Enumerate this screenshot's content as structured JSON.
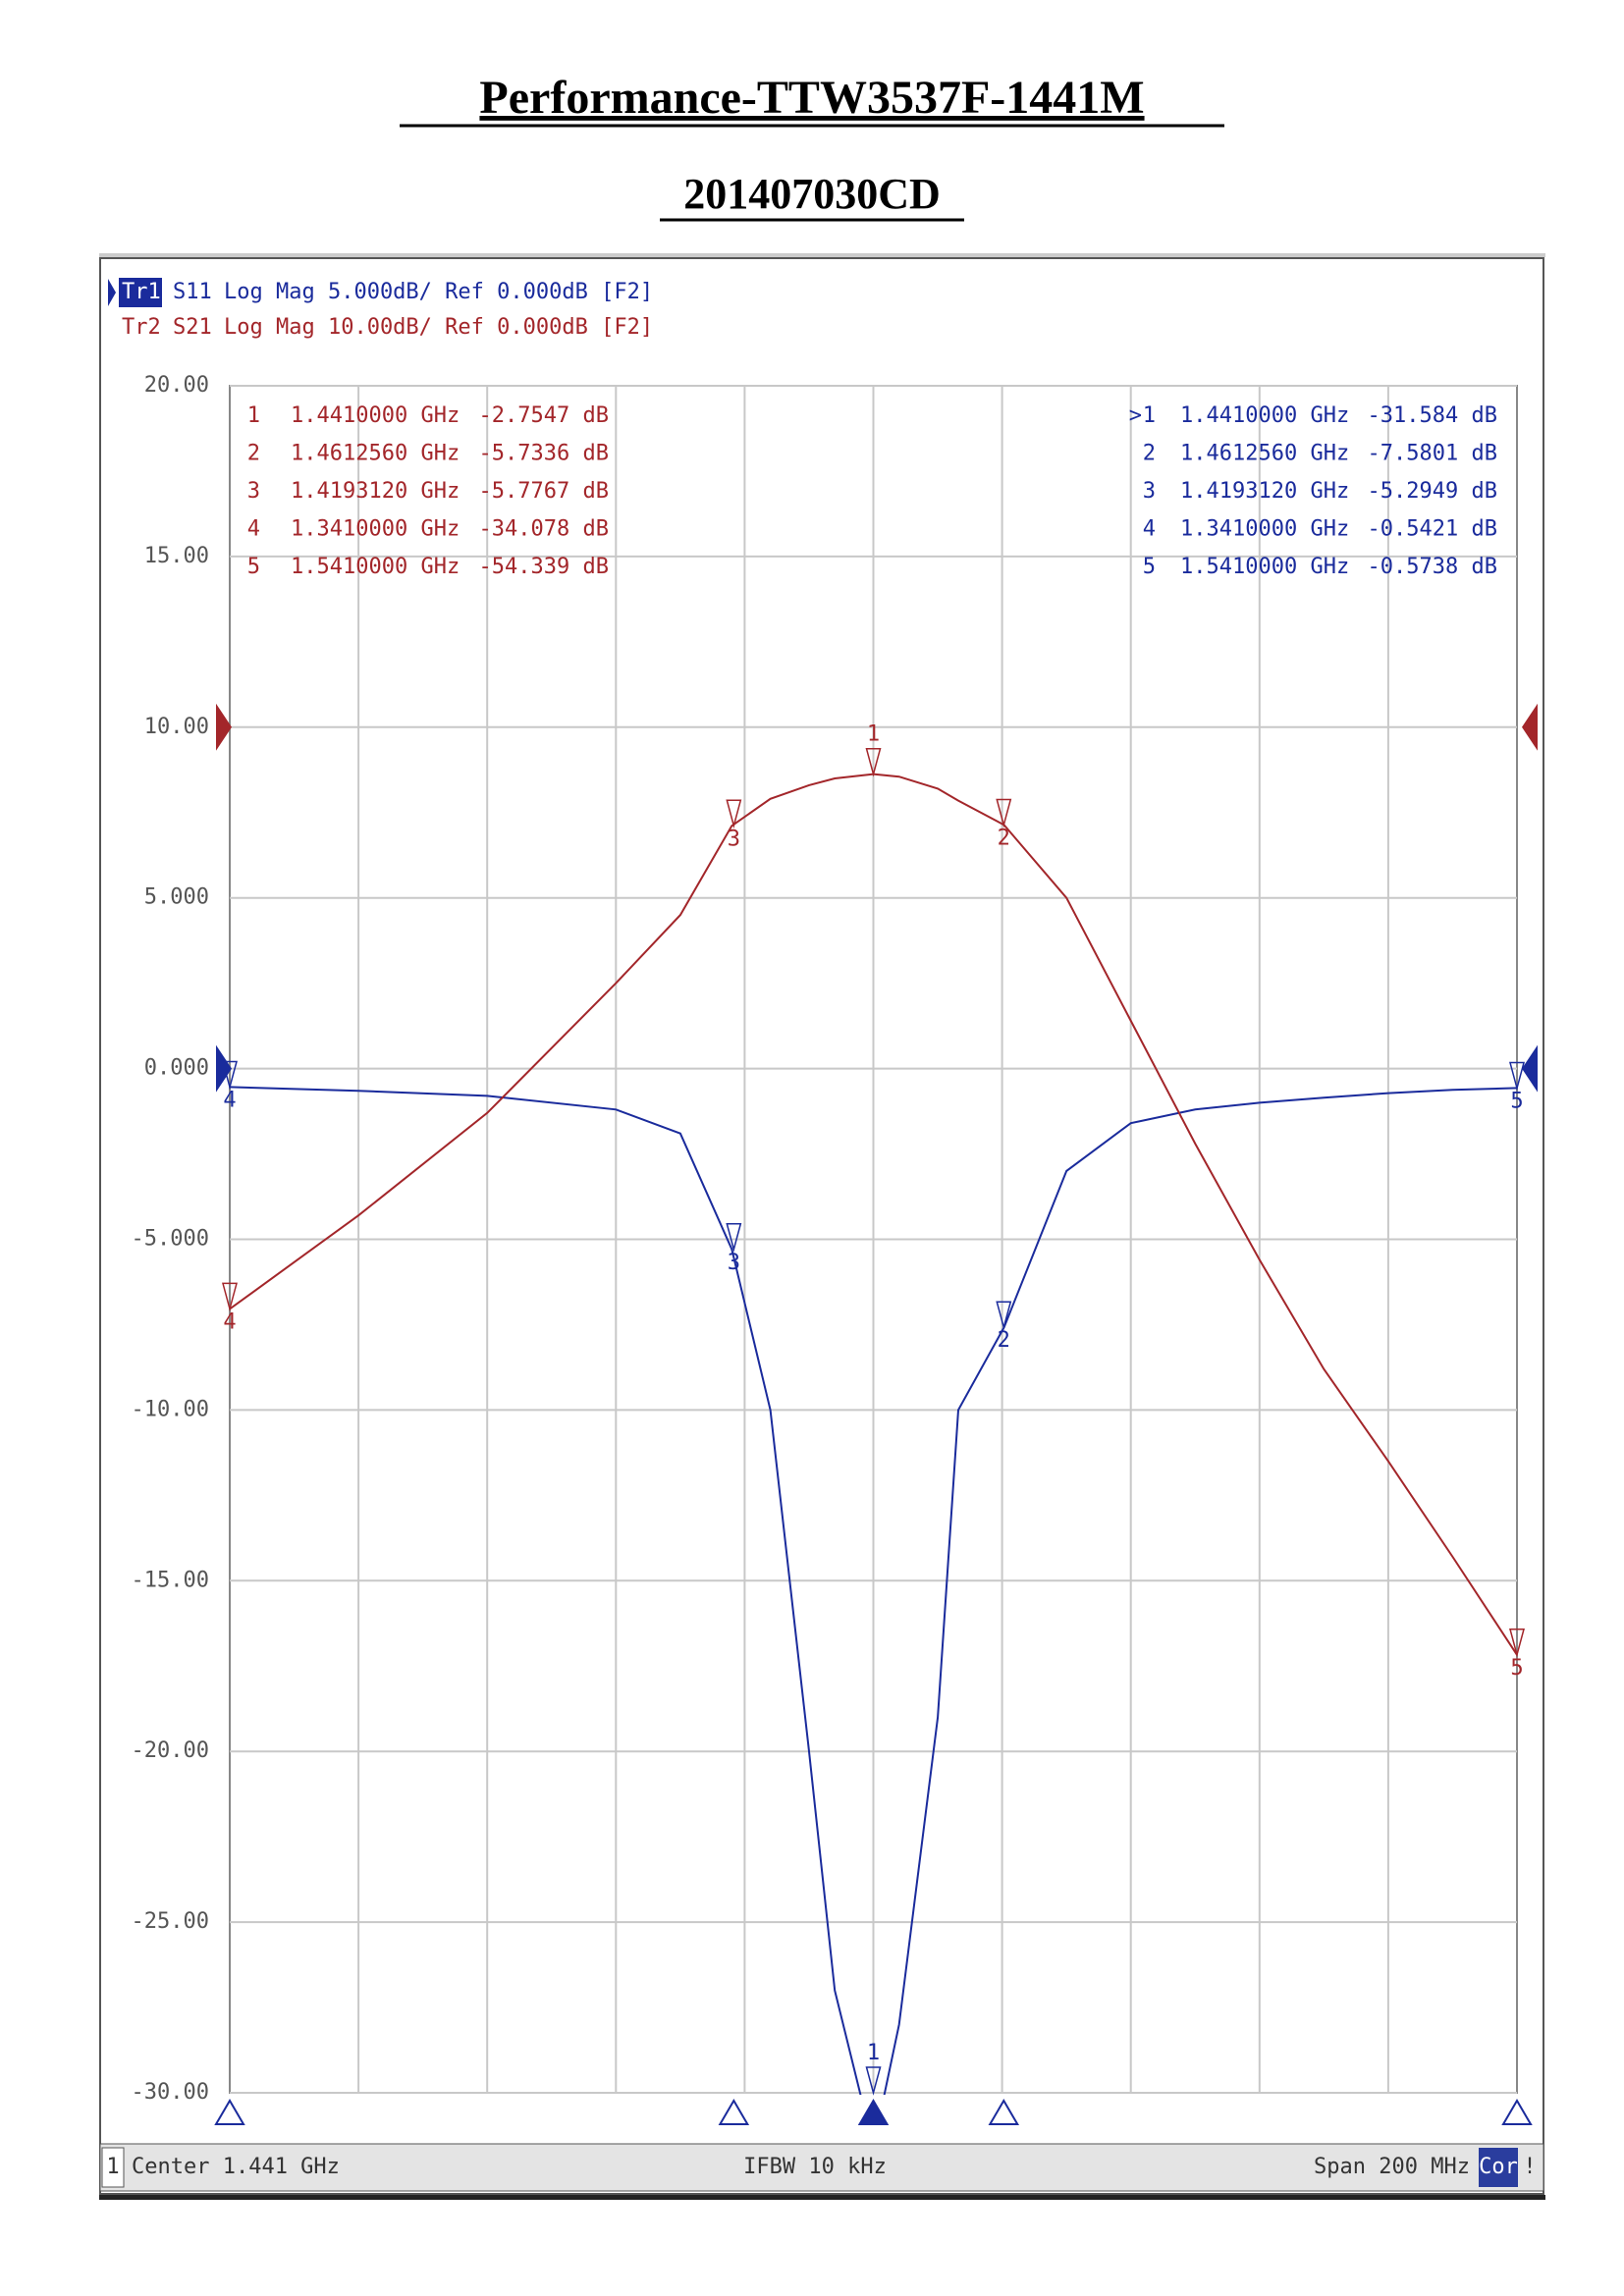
{
  "chart_data": {
    "type": "line",
    "title": "Performance-TTW3537F-1441M",
    "subtitle": "201407030CD",
    "x": [
      1.341,
      1.361,
      1.381,
      1.401,
      1.411,
      1.419,
      1.425,
      1.431,
      1.435,
      1.441,
      1.445,
      1.451,
      1.4542,
      1.4613,
      1.471,
      1.481,
      1.491,
      1.501,
      1.511,
      1.521,
      1.531,
      1.541
    ],
    "xlim": [
      1.341,
      1.541
    ],
    "x_divisions": 10,
    "ylim": [
      -30,
      20
    ],
    "yticks": [
      {
        "value": 20,
        "label": "20.00"
      },
      {
        "value": 15,
        "label": "15.00"
      },
      {
        "value": 10,
        "label": "10.00"
      },
      {
        "value": 5,
        "label": "5.000"
      },
      {
        "value": 0,
        "label": "0.000"
      },
      {
        "value": -5,
        "label": "-5.000"
      },
      {
        "value": -10,
        "label": "-10.00"
      },
      {
        "value": -15,
        "label": "-15.00"
      },
      {
        "value": -20,
        "label": "-20.00"
      },
      {
        "value": -25,
        "label": "-25.00"
      },
      {
        "value": -30,
        "label": "-30.00"
      }
    ],
    "y2lim": [
      -80,
      20
    ],
    "grid": true,
    "series": [
      {
        "trace": "Tr1",
        "name": "S11",
        "header": "Log Mag 5.000dB/ Ref 0.000dB [F2]",
        "color": "#1a2b9c",
        "ref": 0,
        "active_symbol": ">",
        "values": [
          -0.54,
          -0.65,
          -0.8,
          -1.2,
          -1.9,
          -5.29,
          -10,
          -20,
          -27,
          -31.58,
          -28,
          -19,
          -10,
          -7.58,
          -3,
          -1.6,
          -1.2,
          -1.0,
          -0.85,
          -0.72,
          -0.62,
          -0.57
        ],
        "markers": [
          {
            "id": "1",
            "x": 1.441,
            "value": -31.584,
            "x_label": "1.4410000 GHz",
            "value_label": "-31.584 dB"
          },
          {
            "id": "2",
            "x": 1.461256,
            "value": -7.5801,
            "x_label": "1.4612560 GHz",
            "value_label": "-7.5801 dB"
          },
          {
            "id": "3",
            "x": 1.419312,
            "value": -5.2949,
            "x_label": "1.4193120 GHz",
            "value_label": "-5.2949 dB"
          },
          {
            "id": "4",
            "x": 1.341,
            "value": -0.5421,
            "x_label": "1.3410000 GHz",
            "value_label": "-0.5421 dB"
          },
          {
            "id": "5",
            "x": 1.541,
            "value": -0.5738,
            "x_label": "1.5410000 GHz",
            "value_label": "-0.5738 dB"
          }
        ]
      },
      {
        "trace": "Tr2",
        "name": "S21",
        "header": "Log Mag 10.00dB/ Ref 0.000dB [F2]",
        "color": "#a3262a",
        "axis": "y2",
        "ref": 0,
        "values": [
          -34.08,
          -28.6,
          -22.6,
          -15,
          -11,
          -5.78,
          -4.2,
          -3.4,
          -3,
          -2.75,
          -2.9,
          -3.6,
          -4.3,
          -5.73,
          -10,
          -17.2,
          -24.4,
          -31.2,
          -37.6,
          -43,
          -48.6,
          -54.34
        ],
        "markers": [
          {
            "id": "1",
            "x": 1.441,
            "value": -2.7547,
            "x_label": "1.4410000 GHz",
            "value_label": "-2.7547 dB"
          },
          {
            "id": "2",
            "x": 1.461256,
            "value": -5.7336,
            "x_label": "1.4612560 GHz",
            "value_label": "-5.7336 dB"
          },
          {
            "id": "3",
            "x": 1.419312,
            "value": -5.7767,
            "x_label": "1.4193120 GHz",
            "value_label": "-5.7767 dB"
          },
          {
            "id": "4",
            "x": 1.341,
            "value": -34.078,
            "x_label": "1.3410000 GHz",
            "value_label": "-34.078 dB"
          },
          {
            "id": "5",
            "x": 1.541,
            "value": -54.339,
            "x_label": "1.5410000 GHz",
            "value_label": "-54.339 dB"
          }
        ]
      }
    ],
    "footer": {
      "channel": "1",
      "center": "Center 1.441 GHz",
      "ifbw": "IFBW 10 kHz",
      "span": "Span 200 MHz",
      "correction": "Cor",
      "status": "!"
    }
  }
}
